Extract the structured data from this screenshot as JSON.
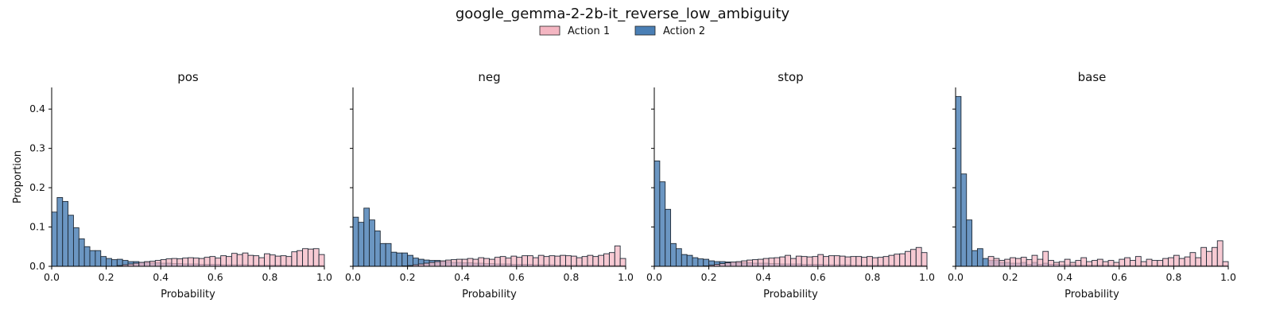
{
  "figure": {
    "title": "google_gemma-2-2b-it_reverse_low_ambiguity"
  },
  "legend": {
    "placement": "top-center",
    "items": [
      {
        "label": "Action 1",
        "color": "#f4b6c2"
      },
      {
        "label": "Action 2",
        "color": "#4a7fb5"
      }
    ]
  },
  "chart_data": [
    {
      "type": "histogram",
      "title": "pos",
      "xlabel": "Probability",
      "ylabel": "Proportion",
      "xlim": [
        0,
        1
      ],
      "ylim": [
        0,
        0.455
      ],
      "xticks": [
        "0.0",
        "0.2",
        "0.4",
        "0.6",
        "0.8",
        "1.0"
      ],
      "yticks": [
        "0.0",
        "0.1",
        "0.2",
        "0.3",
        "0.4"
      ],
      "bin_width": 0.02,
      "series": [
        {
          "name": "Action 1",
          "color": "#f4b6c2",
          "values": [
            0.0,
            0.0,
            0.0,
            0.0,
            0.0,
            0.0,
            0.0,
            0.0,
            0.0,
            0.0,
            0.0,
            0.0,
            0.002,
            0.004,
            0.006,
            0.008,
            0.01,
            0.012,
            0.013,
            0.015,
            0.017,
            0.019,
            0.02,
            0.019,
            0.021,
            0.022,
            0.021,
            0.02,
            0.023,
            0.025,
            0.021,
            0.027,
            0.025,
            0.033,
            0.03,
            0.034,
            0.028,
            0.027,
            0.022,
            0.032,
            0.029,
            0.026,
            0.027,
            0.025,
            0.037,
            0.04,
            0.045,
            0.044,
            0.045,
            0.03
          ]
        },
        {
          "name": "Action 2",
          "color": "#4a7fb5",
          "values": [
            0.138,
            0.175,
            0.165,
            0.13,
            0.098,
            0.07,
            0.05,
            0.04,
            0.04,
            0.025,
            0.02,
            0.017,
            0.018,
            0.015,
            0.012,
            0.012,
            0.01,
            0.01,
            0.009,
            0.009,
            0.008,
            0.008,
            0.007,
            0.007,
            0.006,
            0.006,
            0.006,
            0.005,
            0.005,
            0.005,
            0.005,
            0.004,
            0.004,
            0.004,
            0.004,
            0.004,
            0.003,
            0.003,
            0.003,
            0.003,
            0.003,
            0.003,
            0.003,
            0.003,
            0.002,
            0.002,
            0.002,
            0.002,
            0.002,
            0.002
          ]
        }
      ]
    },
    {
      "type": "histogram",
      "title": "neg",
      "xlabel": "Probability",
      "ylabel": "",
      "xlim": [
        0,
        1
      ],
      "ylim": [
        0,
        0.455
      ],
      "xticks": [
        "0.0",
        "0.2",
        "0.4",
        "0.6",
        "0.8",
        "1.0"
      ],
      "yticks": [
        "0.0",
        "0.1",
        "0.2",
        "0.3",
        "0.4"
      ],
      "bin_width": 0.02,
      "series": [
        {
          "name": "Action 1",
          "color": "#f4b6c2",
          "values": [
            0.0,
            0.0,
            0.0,
            0.0,
            0.0,
            0.0,
            0.0,
            0.0,
            0.0,
            0.001,
            0.002,
            0.004,
            0.006,
            0.008,
            0.01,
            0.012,
            0.014,
            0.016,
            0.017,
            0.018,
            0.018,
            0.02,
            0.018,
            0.022,
            0.02,
            0.018,
            0.023,
            0.025,
            0.021,
            0.026,
            0.023,
            0.027,
            0.027,
            0.022,
            0.028,
            0.025,
            0.027,
            0.026,
            0.028,
            0.027,
            0.026,
            0.022,
            0.025,
            0.028,
            0.025,
            0.028,
            0.032,
            0.035,
            0.052,
            0.02
          ]
        },
        {
          "name": "Action 2",
          "color": "#4a7fb5",
          "values": [
            0.125,
            0.112,
            0.148,
            0.118,
            0.09,
            0.058,
            0.058,
            0.036,
            0.034,
            0.034,
            0.028,
            0.021,
            0.018,
            0.016,
            0.015,
            0.015,
            0.012,
            0.012,
            0.01,
            0.01,
            0.009,
            0.009,
            0.008,
            0.008,
            0.007,
            0.007,
            0.006,
            0.006,
            0.006,
            0.005,
            0.005,
            0.005,
            0.005,
            0.004,
            0.004,
            0.004,
            0.004,
            0.003,
            0.003,
            0.003,
            0.003,
            0.003,
            0.003,
            0.003,
            0.003,
            0.002,
            0.002,
            0.002,
            0.002,
            0.002
          ]
        }
      ]
    },
    {
      "type": "histogram",
      "title": "stop",
      "xlabel": "Probability",
      "ylabel": "",
      "xlim": [
        0,
        1
      ],
      "ylim": [
        0,
        0.455
      ],
      "xticks": [
        "0.0",
        "0.2",
        "0.4",
        "0.6",
        "0.8",
        "1.0"
      ],
      "yticks": [
        "0.0",
        "0.1",
        "0.2",
        "0.3",
        "0.4"
      ],
      "bin_width": 0.02,
      "series": [
        {
          "name": "Action 1",
          "color": "#f4b6c2",
          "values": [
            0.0,
            0.0,
            0.0,
            0.0,
            0.0,
            0.0,
            0.0,
            0.0,
            0.0,
            0.001,
            0.003,
            0.005,
            0.007,
            0.009,
            0.011,
            0.012,
            0.014,
            0.016,
            0.017,
            0.018,
            0.02,
            0.021,
            0.022,
            0.024,
            0.028,
            0.02,
            0.026,
            0.025,
            0.024,
            0.025,
            0.03,
            0.025,
            0.027,
            0.027,
            0.026,
            0.024,
            0.025,
            0.025,
            0.023,
            0.025,
            0.022,
            0.023,
            0.025,
            0.028,
            0.031,
            0.032,
            0.038,
            0.043,
            0.048,
            0.035
          ]
        },
        {
          "name": "Action 2",
          "color": "#4a7fb5",
          "values": [
            0.268,
            0.215,
            0.145,
            0.058,
            0.045,
            0.03,
            0.028,
            0.022,
            0.019,
            0.018,
            0.014,
            0.012,
            0.012,
            0.011,
            0.01,
            0.01,
            0.009,
            0.009,
            0.008,
            0.008,
            0.008,
            0.007,
            0.007,
            0.006,
            0.006,
            0.006,
            0.006,
            0.005,
            0.005,
            0.005,
            0.005,
            0.004,
            0.004,
            0.004,
            0.004,
            0.004,
            0.003,
            0.003,
            0.003,
            0.003,
            0.003,
            0.003,
            0.003,
            0.003,
            0.002,
            0.002,
            0.002,
            0.002,
            0.002,
            0.002
          ]
        }
      ]
    },
    {
      "type": "histogram",
      "title": "base",
      "xlabel": "Probability",
      "ylabel": "",
      "xlim": [
        0,
        1
      ],
      "ylim": [
        0,
        0.455
      ],
      "xticks": [
        "0.0",
        "0.2",
        "0.4",
        "0.6",
        "0.8",
        "1.0"
      ],
      "yticks": [
        "0.0",
        "0.1",
        "0.2",
        "0.3",
        "0.4"
      ],
      "bin_width": 0.02,
      "series": [
        {
          "name": "Action 1",
          "color": "#f4b6c2",
          "values": [
            0.0,
            0.0,
            0.0,
            0.0,
            0.0,
            0.0,
            0.025,
            0.02,
            0.015,
            0.018,
            0.022,
            0.02,
            0.023,
            0.017,
            0.028,
            0.018,
            0.038,
            0.015,
            0.01,
            0.012,
            0.018,
            0.01,
            0.015,
            0.022,
            0.012,
            0.015,
            0.018,
            0.012,
            0.015,
            0.01,
            0.018,
            0.022,
            0.015,
            0.025,
            0.012,
            0.018,
            0.015,
            0.015,
            0.02,
            0.022,
            0.028,
            0.02,
            0.024,
            0.035,
            0.022,
            0.048,
            0.038,
            0.048,
            0.065,
            0.012
          ]
        },
        {
          "name": "Action 2",
          "color": "#4a7fb5",
          "values": [
            0.432,
            0.235,
            0.118,
            0.04,
            0.045,
            0.02,
            0.015,
            0.015,
            0.01,
            0.01,
            0.008,
            0.008,
            0.01,
            0.005,
            0.01,
            0.005,
            0.008,
            0.005,
            0.005,
            0.004,
            0.004,
            0.004,
            0.003,
            0.003,
            0.003,
            0.003,
            0.003,
            0.003,
            0.003,
            0.002,
            0.002,
            0.002,
            0.002,
            0.002,
            0.002,
            0.002,
            0.002,
            0.002,
            0.002,
            0.002,
            0.002,
            0.002,
            0.002,
            0.002,
            0.002,
            0.002,
            0.002,
            0.002,
            0.002,
            0.002
          ]
        }
      ]
    }
  ]
}
